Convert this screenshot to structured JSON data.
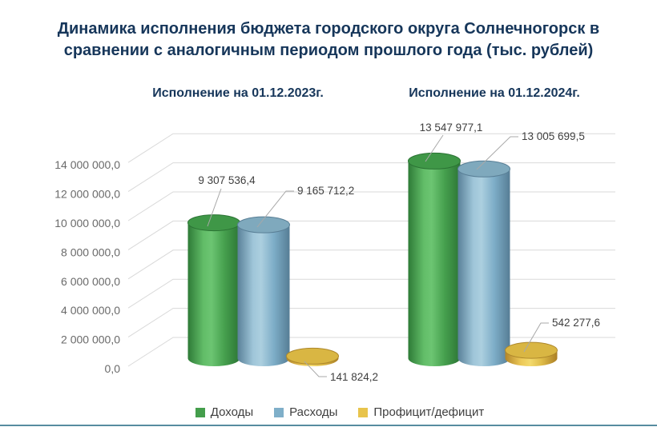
{
  "header": {
    "title_line1": "Динамика исполнения бюджета городского округа Солнечногорск  в",
    "title_line2": "сравнении с аналогичным периодом прошлого года (тыс. рублей)"
  },
  "chart_data": {
    "type": "bar",
    "style": "3d-cylinder",
    "title": "Динамика исполнения бюджета городского округа Солнечногорск в сравнении с аналогичным периодом прошлого года (тыс. рублей)",
    "groups": [
      "Исполнение на 01.12.2023г.",
      "Исполнение на 01.12.2024г."
    ],
    "series": [
      {
        "name": "Доходы",
        "color": "#449e4c",
        "values": [
          9307536.4,
          13547977.1
        ]
      },
      {
        "name": "Расходы",
        "color": "#7fafc9",
        "values": [
          9165712.2,
          13005699.5
        ]
      },
      {
        "name": "Профицит/дефицит",
        "color": "#e8c44c",
        "values": [
          141824.2,
          542277.6
        ]
      }
    ],
    "ylim": [
      0,
      14000000
    ],
    "ytick_step": 2000000,
    "ytick_labels": [
      "0,0",
      "2 000 000,0",
      "4 000 000,0",
      "6 000 000,0",
      "8 000 000,0",
      "10 000 000,0",
      "12 000 000,0",
      "14 000 000,0"
    ],
    "data_labels": [
      "9 307 536,4",
      "9 165 712,2",
      "141 824,2",
      "13 547 977,1",
      "13 005 699,5",
      "542 277,6"
    ],
    "grid": true,
    "legend_position": "bottom"
  },
  "colors": {
    "title_text": "#16365a",
    "axis_text": "#6a6a6a",
    "data_label_text": "#3f3f3f",
    "gridline": "#d9d9d9",
    "leader_line": "#a8a8a8",
    "bottom_rule": "#568ca0",
    "background": "#ffffff"
  }
}
